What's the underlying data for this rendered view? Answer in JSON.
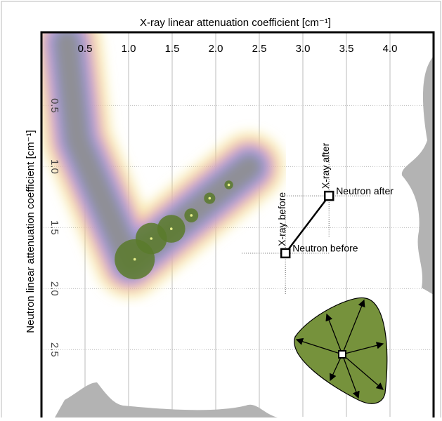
{
  "chart_data": {
    "type": "scatter",
    "x_label": "X-ray linear attenuation coefficient [cm⁻¹]",
    "y_label": "Neutron linear attenuation coefficient [cm⁻¹]",
    "x_axis_position": "top",
    "y_inverted": true,
    "grid": true,
    "xlim": [
      0,
      4.5
    ],
    "ylim": [
      -0.1,
      3.05
    ],
    "xticks": [
      0.5,
      {
        "value": 1,
        "label": "1.0"
      },
      1.5,
      {
        "value": 2,
        "label": "2.0"
      },
      2.5,
      {
        "value": 3,
        "label": "3.0"
      },
      3.5,
      {
        "value": 4,
        "label": "4.0"
      }
    ],
    "yticks": [
      0.5,
      {
        "value": 1,
        "label": "1.0"
      },
      1.5,
      {
        "value": 2,
        "label": "2.0"
      },
      2.5
    ],
    "series": [
      {
        "color": "#5b7a2c",
        "x": [
          1.07,
          1.26,
          1.49,
          1.72,
          1.93,
          2.15
        ],
        "y": [
          1.76,
          1.59,
          1.51,
          1.4,
          1.26,
          1.15
        ],
        "sizes": [
          0.23,
          0.18,
          0.16,
          0.08,
          0.065,
          0.05
        ]
      }
    ],
    "transition": {
      "before": {
        "x": 2.8,
        "y": 1.71,
        "x_text": "X-ray before",
        "y_text": "Neutron before"
      },
      "after": {
        "x": 3.3,
        "y": 1.24,
        "x_text": "X-ray after",
        "y_text": "Neutron after"
      }
    }
  }
}
